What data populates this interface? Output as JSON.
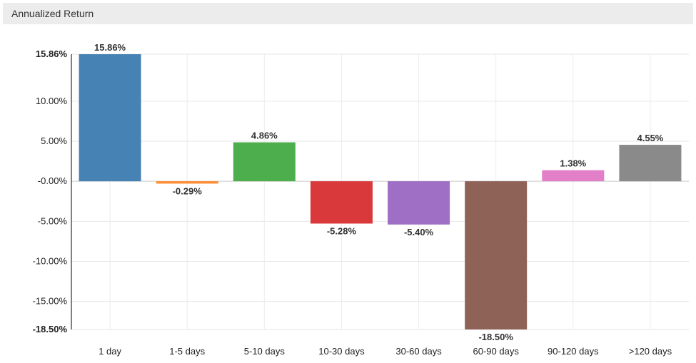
{
  "header": {
    "title": "Annualized Return"
  },
  "chart_data": {
    "type": "bar",
    "title": "Annualized Return",
    "xlabel": "",
    "ylabel": "",
    "ylim": [
      -18.5,
      15.86
    ],
    "grid": true,
    "yticks": [
      15.86,
      10,
      5,
      0,
      -5,
      -10,
      -15,
      -18.5
    ],
    "ytick_labels": [
      "15.86%",
      "10.00%",
      "5.00%",
      "-0.00%",
      "-5.00%",
      "-10.00%",
      "-15.00%",
      "-18.50%"
    ],
    "categories": [
      "1 day",
      "1-5 days",
      "5-10 days",
      "10-30 days",
      "30-60 days",
      "60-90 days",
      "90-120 days",
      ">120 days"
    ],
    "values": [
      15.86,
      -0.29,
      4.86,
      -5.28,
      -5.4,
      -18.5,
      1.38,
      4.55
    ],
    "value_labels": [
      "15.86%",
      "-0.29%",
      "4.86%",
      "-5.28%",
      "-5.40%",
      "-18.50%",
      "1.38%",
      "4.55%"
    ],
    "colors": [
      "#4682b4",
      "#ff8c2e",
      "#4cae4c",
      "#d9393b",
      "#9e6fc4",
      "#8f6258",
      "#e37fc8",
      "#8a8a8a"
    ]
  }
}
